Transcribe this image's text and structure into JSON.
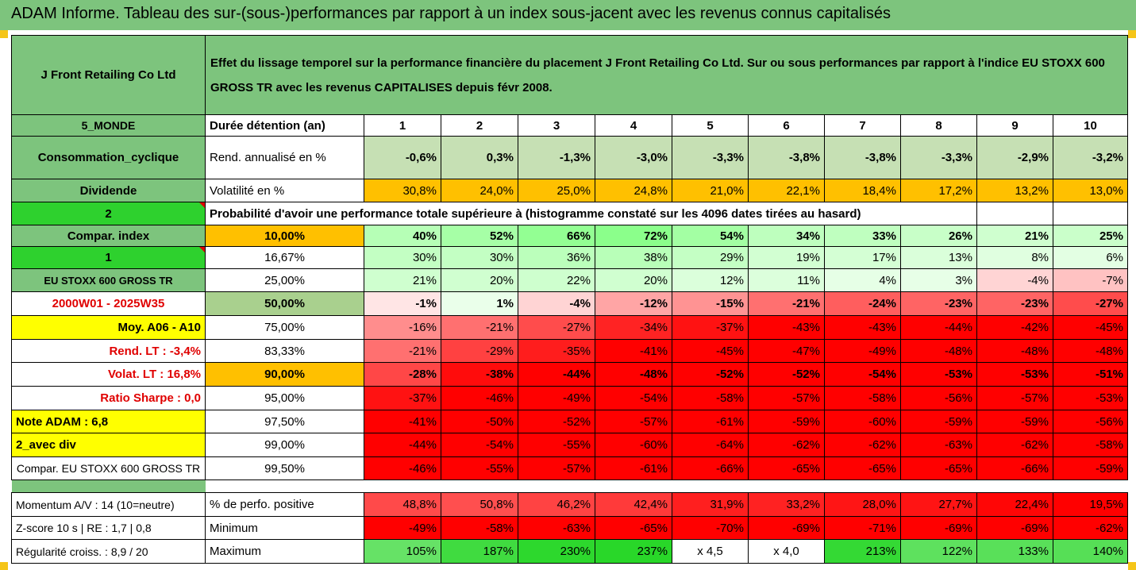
{
  "title": "ADAM Informe. Tableau des sur-(sous-)performances par rapport à un index sous-jacent avec les revenus connus capitalisés",
  "company": "J Front Retailing Co Ltd",
  "description": "Effet du lissage temporel sur la performance financière du placement J Front Retailing Co Ltd. Sur ou sous performances par rapport à l'indice EU STOXX 600 GROSS TR avec les revenus CAPITALISES depuis févr 2008.",
  "left": {
    "region": "5_MONDE",
    "sector": "Consommation_cyclique",
    "dividend": "Dividende",
    "num2": "2",
    "compar_index": "Compar. index",
    "num1": "1",
    "index_name": "EU STOXX 600 GROSS TR",
    "period": "2000W01 - 2025W35",
    "moy": "Moy. A06 - A10",
    "rend_lt": "Rend. LT :   -3,4%",
    "volat_lt": "Volat. LT :   16,8%",
    "sharpe": "Ratio Sharpe :   0,0",
    "note": "Note ADAM : 6,8",
    "avec_div": "2_avec div",
    "compar_full": "Compar. EU STOXX 600 GROSS TR",
    "momentum": "Momentum A/V : 14 (10=neutre)",
    "zscore": "Z-score 10 s  |  RE : 1,7  |  0,8",
    "regularite": "Régularité croiss. : 8,9 / 20"
  },
  "labels": {
    "duree": "Durée détention (an)",
    "rend": "Rend. annualisé en %",
    "volat": "Volatilité en %",
    "proba": "Probabilité d'avoir une performance totale supérieure à (histogramme constaté sur les 4096 dates tirées au hasard)",
    "perf_pos": "% de perfo. positive",
    "minimum": "Minimum",
    "maximum": "Maximum"
  },
  "years": [
    "1",
    "2",
    "3",
    "4",
    "5",
    "6",
    "7",
    "8",
    "9",
    "10"
  ],
  "rend": [
    "-0,6%",
    "0,3%",
    "-1,3%",
    "-3,0%",
    "-3,3%",
    "-3,8%",
    "-3,8%",
    "-3,3%",
    "-2,9%",
    "-3,2%"
  ],
  "volat": [
    "30,8%",
    "24,0%",
    "25,0%",
    "24,8%",
    "21,0%",
    "22,1%",
    "18,4%",
    "17,2%",
    "13,2%",
    "13,0%"
  ],
  "percentiles": [
    {
      "p": "10,00%",
      "v": [
        "40%",
        "52%",
        "66%",
        "72%",
        "54%",
        "34%",
        "33%",
        "26%",
        "21%",
        "25%"
      ]
    },
    {
      "p": "16,67%",
      "v": [
        "30%",
        "30%",
        "36%",
        "38%",
        "29%",
        "19%",
        "17%",
        "13%",
        "8%",
        "6%"
      ]
    },
    {
      "p": "25,00%",
      "v": [
        "21%",
        "20%",
        "22%",
        "20%",
        "12%",
        "11%",
        "4%",
        "3%",
        "-4%",
        "-7%"
      ]
    },
    {
      "p": "50,00%",
      "v": [
        "-1%",
        "1%",
        "-4%",
        "-12%",
        "-15%",
        "-21%",
        "-24%",
        "-23%",
        "-23%",
        "-27%"
      ]
    },
    {
      "p": "75,00%",
      "v": [
        "-16%",
        "-21%",
        "-27%",
        "-34%",
        "-37%",
        "-43%",
        "-43%",
        "-44%",
        "-42%",
        "-45%"
      ]
    },
    {
      "p": "83,33%",
      "v": [
        "-21%",
        "-29%",
        "-35%",
        "-41%",
        "-45%",
        "-47%",
        "-49%",
        "-48%",
        "-48%",
        "-48%"
      ]
    },
    {
      "p": "90,00%",
      "v": [
        "-28%",
        "-38%",
        "-44%",
        "-48%",
        "-52%",
        "-52%",
        "-54%",
        "-53%",
        "-53%",
        "-51%"
      ]
    },
    {
      "p": "95,00%",
      "v": [
        "-37%",
        "-46%",
        "-49%",
        "-54%",
        "-58%",
        "-57%",
        "-58%",
        "-56%",
        "-57%",
        "-53%"
      ]
    },
    {
      "p": "97,50%",
      "v": [
        "-41%",
        "-50%",
        "-52%",
        "-57%",
        "-61%",
        "-59%",
        "-60%",
        "-59%",
        "-59%",
        "-56%"
      ]
    },
    {
      "p": "99,00%",
      "v": [
        "-44%",
        "-54%",
        "-55%",
        "-60%",
        "-64%",
        "-62%",
        "-62%",
        "-63%",
        "-62%",
        "-58%"
      ]
    },
    {
      "p": "99,50%",
      "v": [
        "-46%",
        "-55%",
        "-57%",
        "-61%",
        "-66%",
        "-65%",
        "-65%",
        "-65%",
        "-66%",
        "-59%"
      ]
    }
  ],
  "perf_pos": [
    "48,8%",
    "50,8%",
    "46,2%",
    "42,4%",
    "31,9%",
    "33,2%",
    "28,0%",
    "27,7%",
    "22,4%",
    "19,5%"
  ],
  "minimum": [
    "-49%",
    "-58%",
    "-63%",
    "-65%",
    "-70%",
    "-69%",
    "-71%",
    "-69%",
    "-69%",
    "-62%"
  ],
  "maximum": [
    "105%",
    "187%",
    "230%",
    "237%",
    "x 4,5",
    "x 4,0",
    "213%",
    "122%",
    "133%",
    "140%"
  ],
  "colors": {
    "header_green": "#7dc47d",
    "bright_green": "#2ed12e",
    "orange": "#ffc000",
    "yellow": "#ffff00",
    "red": "#ff0000",
    "label_red": "#e00000"
  }
}
